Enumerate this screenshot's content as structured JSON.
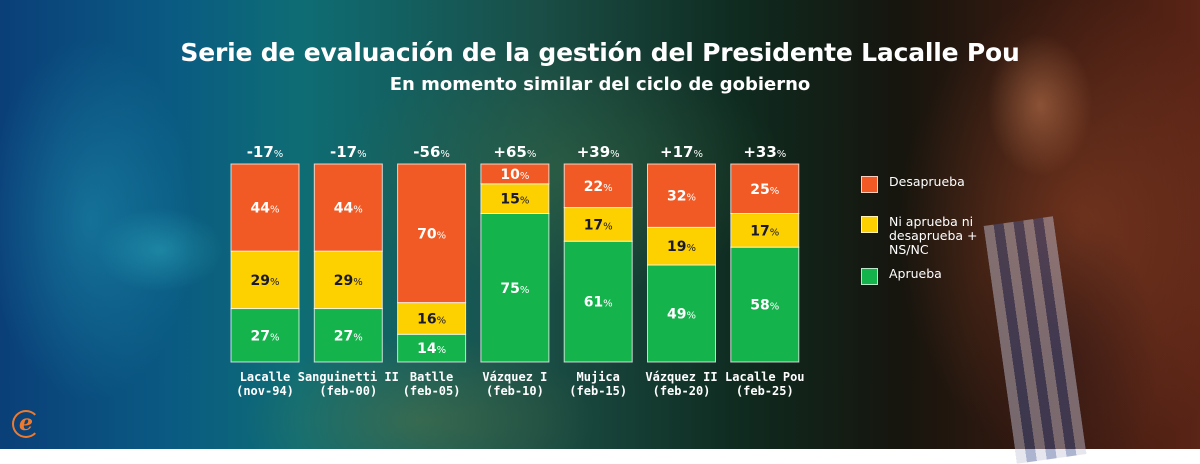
{
  "header": {
    "title": "Serie de evaluación de la gestión del Presidente Lacalle Pou",
    "subtitle": "En momento similar del ciclo de gobierno"
  },
  "colors": {
    "desaprueba": "#f15a24",
    "ni": "#fdd000",
    "aprueba": "#14b34c",
    "dark_text": "#1a1a2e",
    "light_text": "#ffffff"
  },
  "legend": {
    "items": [
      {
        "label": "Desaprueba",
        "color": "#f15a24"
      },
      {
        "label": "Ni aprueba ni desaprueba + NS/NC",
        "lines": [
          "Ni aprueba ni",
          "desaprueba +",
          "NS/NC"
        ],
        "color": "#fdd000"
      },
      {
        "label": "Aprueba",
        "color": "#14b34c"
      }
    ]
  },
  "logo": {
    "glyph": "e",
    "icon": "brand-e-logo-icon"
  },
  "chart_data": {
    "type": "bar",
    "stacked": true,
    "normalized": true,
    "title": "Serie de evaluación de la gestión del Presidente Lacalle Pou",
    "subtitle": "En momento similar del ciclo de gobierno",
    "xlabel": "",
    "ylabel": "",
    "ylim": [
      0,
      100
    ],
    "grid": false,
    "legend_position": "right",
    "categories": [
      {
        "name": "Lacalle",
        "date": "(nov-94)"
      },
      {
        "name": "Sanguinetti II",
        "date": "(feb-00)"
      },
      {
        "name": "Batlle",
        "date": "(feb-05)"
      },
      {
        "name": "Vázquez I",
        "date": "(feb-10)"
      },
      {
        "name": "Mujica",
        "date": "(feb-15)"
      },
      {
        "name": "Vázquez II",
        "date": "(feb-20)"
      },
      {
        "name": "Lacalle Pou",
        "date": "(feb-25)"
      }
    ],
    "net_labels": [
      "-17",
      "-17",
      "-56",
      "+65",
      "+39",
      "+17",
      "+33"
    ],
    "series": [
      {
        "name": "Aprueba",
        "key": "aprueba",
        "values": [
          27,
          27,
          14,
          75,
          61,
          49,
          58
        ]
      },
      {
        "name": "Ni aprueba ni desaprueba + NS/NC",
        "key": "ni",
        "values": [
          29,
          29,
          16,
          15,
          17,
          19,
          17
        ]
      },
      {
        "name": "Desaprueba",
        "key": "desaprueba",
        "values": [
          44,
          44,
          70,
          10,
          22,
          32,
          25
        ]
      }
    ],
    "unit": "%"
  }
}
